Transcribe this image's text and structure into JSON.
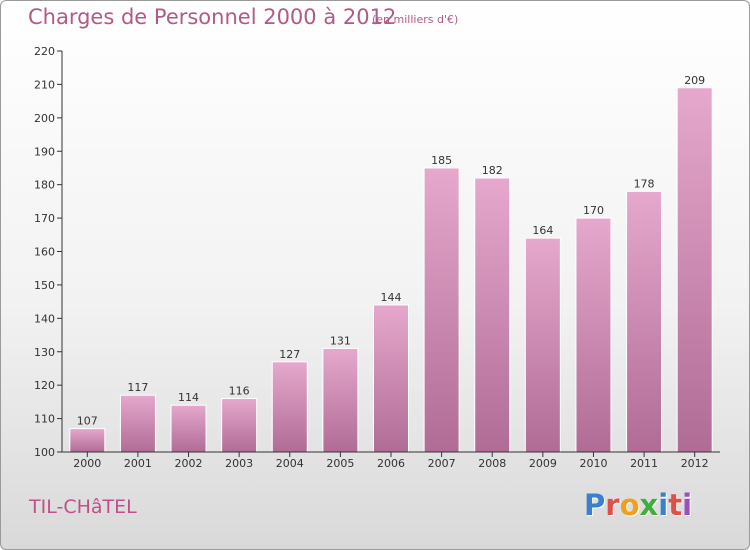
{
  "header": {
    "title": "Charges de Personnel 2000 à 2012",
    "unit": "(en milliers d'€)"
  },
  "footer": {
    "place": "TIL-CHâTEL",
    "logo_letters": [
      "P",
      "r",
      "o",
      "x",
      "i",
      "t",
      "i"
    ],
    "logo_colors": [
      "#3a7fd0",
      "#e0504a",
      "#f0a020",
      "#3fae3f",
      "#3a7fd0",
      "#e0504a",
      "#9a50c0"
    ]
  },
  "colors": {
    "bar_top": "#e6a8cd",
    "bar_bottom": "#b06c95",
    "bar_edge": "#ffffff",
    "axis": "#333333",
    "text": "#333333"
  },
  "chart_data": {
    "type": "bar",
    "categories": [
      "2000",
      "2001",
      "2002",
      "2003",
      "2004",
      "2005",
      "2006",
      "2007",
      "2008",
      "2009",
      "2010",
      "2011",
      "2012"
    ],
    "values": [
      107,
      117,
      114,
      116,
      127,
      131,
      144,
      185,
      182,
      164,
      170,
      178,
      209
    ],
    "ylim": [
      100,
      220
    ],
    "yticks": [
      100,
      110,
      120,
      130,
      140,
      150,
      160,
      170,
      180,
      190,
      200,
      210,
      220
    ],
    "grid": false,
    "data_labels": true
  }
}
